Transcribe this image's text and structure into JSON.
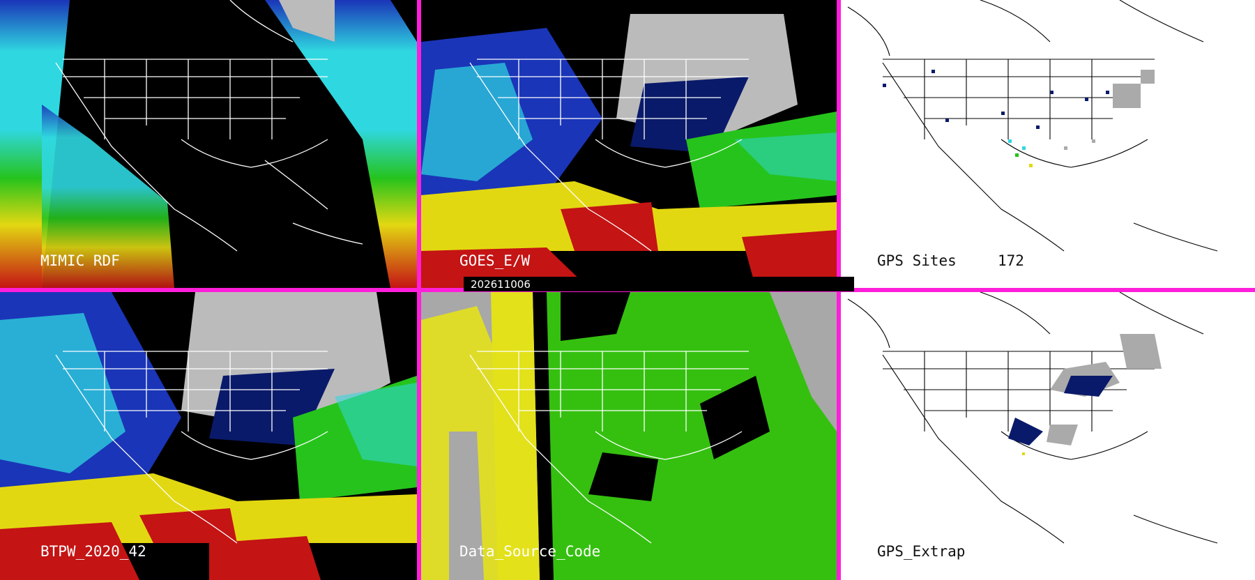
{
  "timestamp": "202611006",
  "panels": [
    {
      "label": "MIMIC RDF"
    },
    {
      "label": "GOES_E/W"
    },
    {
      "label": "GPS Sites",
      "count": "172"
    },
    {
      "label": "BTPW_2020_42"
    },
    {
      "label": "Data_Source_Code"
    },
    {
      "label": "GPS_Extrap"
    }
  ],
  "colors": {
    "separator": "#ff1ed9",
    "tpw_red": "#c41414",
    "tpw_yellow": "#e2d812",
    "tpw_green": "#26c31c",
    "tpw_cyan": "#2fd8e0",
    "tpw_blue": "#1a35b8",
    "tpw_navy": "#0a1a6a",
    "source_yellow": "#e3e11a",
    "source_green": "#35c010",
    "source_gray": "#a8a8a8"
  }
}
